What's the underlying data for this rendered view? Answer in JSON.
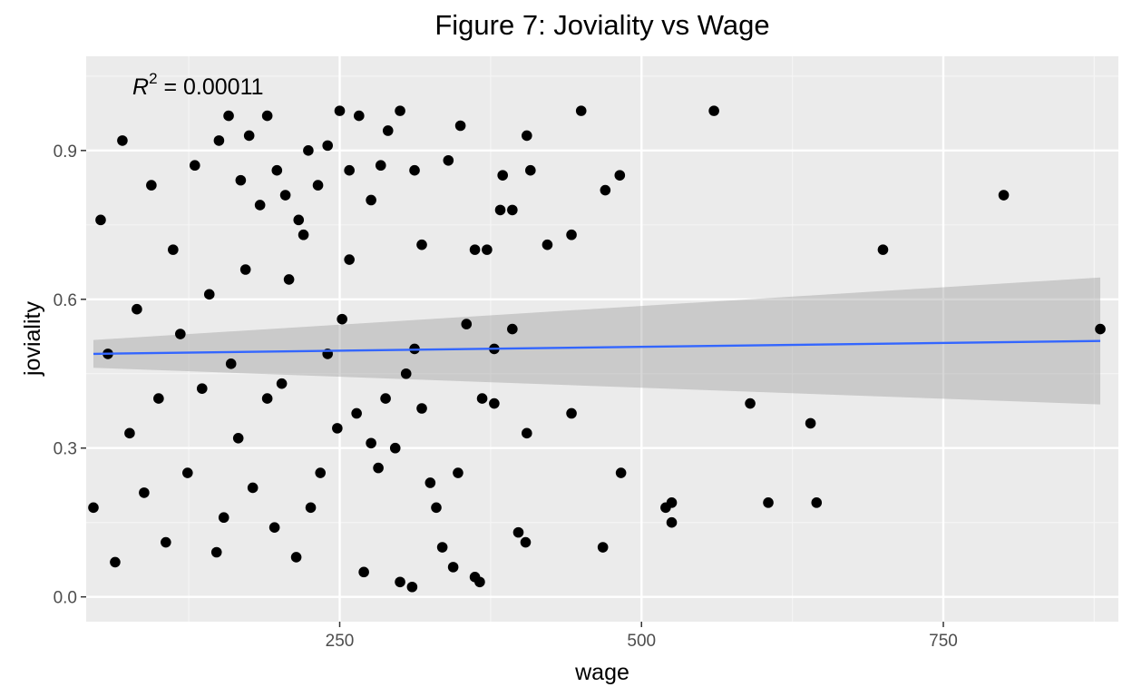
{
  "chart_data": {
    "type": "scatter",
    "title": "Figure 7: Joviality vs Wage",
    "xlabel": "wage",
    "ylabel": "joviality",
    "xlim": [
      40,
      895
    ],
    "ylim": [
      -0.05,
      1.09
    ],
    "x_ticks": [
      250,
      500,
      750
    ],
    "x_tick_labels": [
      "250",
      "500",
      "750"
    ],
    "y_ticks": [
      0.0,
      0.3,
      0.6,
      0.9
    ],
    "y_tick_labels": [
      "0.0",
      "0.3",
      "0.6",
      "0.9"
    ],
    "grid": true,
    "legend": "none",
    "annotation": {
      "base": "R",
      "superscript": "2",
      "text": " = 0.00011"
    },
    "trend_line": {
      "x": [
        46,
        880
      ],
      "y": [
        0.49,
        0.516
      ]
    },
    "confidence_band": {
      "x": [
        46,
        880
      ],
      "lower": [
        0.462,
        0.388
      ],
      "upper": [
        0.518,
        0.644
      ]
    },
    "points": [
      [
        450,
        0.98
      ],
      [
        560,
        0.98
      ],
      [
        800,
        0.81
      ],
      [
        700,
        0.7
      ],
      [
        880,
        0.54
      ],
      [
        590,
        0.39
      ],
      [
        640,
        0.35
      ],
      [
        645,
        0.19
      ],
      [
        605,
        0.19
      ],
      [
        525,
        0.19
      ],
      [
        525,
        0.15
      ],
      [
        520,
        0.18
      ],
      [
        483,
        0.25
      ],
      [
        468,
        0.1
      ],
      [
        442,
        0.37
      ],
      [
        482,
        0.85
      ],
      [
        470,
        0.82
      ],
      [
        442,
        0.73
      ],
      [
        422,
        0.71
      ],
      [
        408,
        0.86
      ],
      [
        405,
        0.93
      ],
      [
        405,
        0.33
      ],
      [
        404,
        0.11
      ],
      [
        398,
        0.13
      ],
      [
        393,
        0.54
      ],
      [
        393,
        0.78
      ],
      [
        385,
        0.85
      ],
      [
        383,
        0.78
      ],
      [
        378,
        0.5
      ],
      [
        378,
        0.39
      ],
      [
        368,
        0.4
      ],
      [
        366,
        0.03
      ],
      [
        362,
        0.04
      ],
      [
        348,
        0.25
      ],
      [
        344,
        0.06
      ],
      [
        335,
        0.1
      ],
      [
        330,
        0.18
      ],
      [
        325,
        0.23
      ],
      [
        318,
        0.38
      ],
      [
        312,
        0.5
      ],
      [
        305,
        0.45
      ],
      [
        296,
        0.3
      ],
      [
        288,
        0.4
      ],
      [
        282,
        0.26
      ],
      [
        276,
        0.31
      ],
      [
        270,
        0.05
      ],
      [
        264,
        0.37
      ],
      [
        258,
        0.68
      ],
      [
        252,
        0.56
      ],
      [
        248,
        0.34
      ],
      [
        240,
        0.49
      ],
      [
        234,
        0.25
      ],
      [
        226,
        0.18
      ],
      [
        220,
        0.73
      ],
      [
        214,
        0.08
      ],
      [
        208,
        0.64
      ],
      [
        202,
        0.43
      ],
      [
        196,
        0.14
      ],
      [
        190,
        0.4
      ],
      [
        184,
        0.79
      ],
      [
        178,
        0.22
      ],
      [
        172,
        0.66
      ],
      [
        166,
        0.32
      ],
      [
        160,
        0.47
      ],
      [
        154,
        0.16
      ],
      [
        148,
        0.09
      ],
      [
        142,
        0.61
      ],
      [
        136,
        0.42
      ],
      [
        130,
        0.87
      ],
      [
        124,
        0.25
      ],
      [
        118,
        0.53
      ],
      [
        112,
        0.7
      ],
      [
        106,
        0.11
      ],
      [
        100,
        0.4
      ],
      [
        94,
        0.83
      ],
      [
        88,
        0.21
      ],
      [
        82,
        0.58
      ],
      [
        76,
        0.33
      ],
      [
        70,
        0.92
      ],
      [
        64,
        0.07
      ],
      [
        58,
        0.49
      ],
      [
        52,
        0.76
      ],
      [
        46,
        0.18
      ],
      [
        300,
        0.03
      ],
      [
        310,
        0.02
      ],
      [
        350,
        0.95
      ],
      [
        355,
        0.55
      ],
      [
        362,
        0.7
      ],
      [
        372,
        0.7
      ],
      [
        340,
        0.88
      ],
      [
        318,
        0.71
      ],
      [
        312,
        0.86
      ],
      [
        300,
        0.98
      ],
      [
        290,
        0.94
      ],
      [
        284,
        0.87
      ],
      [
        276,
        0.8
      ],
      [
        266,
        0.97
      ],
      [
        258,
        0.86
      ],
      [
        250,
        0.98
      ],
      [
        240,
        0.91
      ],
      [
        232,
        0.83
      ],
      [
        224,
        0.9
      ],
      [
        216,
        0.76
      ],
      [
        205,
        0.81
      ],
      [
        198,
        0.86
      ],
      [
        190,
        0.97
      ],
      [
        175,
        0.93
      ],
      [
        168,
        0.84
      ],
      [
        158,
        0.97
      ],
      [
        150,
        0.92
      ]
    ]
  }
}
